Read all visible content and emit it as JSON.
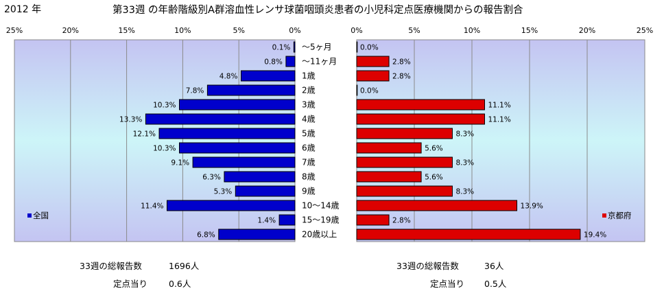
{
  "header": {
    "year": "2012 年",
    "title": "第33週 の年齢階級別A群溶血性レンサ球菌咽頭炎患者の小児科定点医療機関からの報告割合"
  },
  "chart_data": {
    "type": "bar",
    "orientation": "horizontal-butterfly",
    "categories": [
      "～5ヶ月",
      "～11ヶ月",
      "1歳",
      "2歳",
      "3歳",
      "4歳",
      "5歳",
      "6歳",
      "7歳",
      "8歳",
      "9歳",
      "10～14歳",
      "15～19歳",
      "20歳以上"
    ],
    "xlim": [
      0,
      25
    ],
    "xticks": [
      "0%",
      "5%",
      "10%",
      "15%",
      "20%",
      "25%"
    ],
    "grid": true,
    "series": [
      {
        "name": "全国",
        "side": "left",
        "color": "#0000cc",
        "values": [
          0.1,
          0.8,
          4.8,
          7.8,
          10.3,
          13.3,
          12.1,
          10.3,
          9.1,
          6.3,
          5.3,
          11.4,
          1.4,
          6.8
        ],
        "labels": [
          "0.1%",
          "0.8%",
          "4.8%",
          "7.8%",
          "10.3%",
          "13.3%",
          "12.1%",
          "10.3%",
          "9.1%",
          "6.3%",
          "5.3%",
          "11.4%",
          "1.4%",
          "6.8%"
        ],
        "legend_position": "lower-left"
      },
      {
        "name": "京都府",
        "side": "right",
        "color": "#dd0000",
        "values": [
          0.0,
          2.8,
          2.8,
          0.0,
          11.1,
          11.1,
          8.3,
          5.6,
          8.3,
          5.6,
          8.3,
          13.9,
          2.8,
          19.4
        ],
        "labels": [
          "0.0%",
          "2.8%",
          "2.8%",
          "0.0%",
          "11.1%",
          "11.1%",
          "8.3%",
          "5.6%",
          "8.3%",
          "5.6%",
          "8.3%",
          "13.9%",
          "2.8%",
          "19.4%"
        ],
        "legend_position": "lower-right"
      }
    ]
  },
  "stats": {
    "national": {
      "total_label": "33週の総報告数",
      "total_value": "1696人",
      "per_label": "定点当り",
      "per_value": "0.6人"
    },
    "kyoto": {
      "total_label": "33週の総報告数",
      "total_value": "36人",
      "per_label": "定点当り",
      "per_value": "0.5人"
    }
  }
}
